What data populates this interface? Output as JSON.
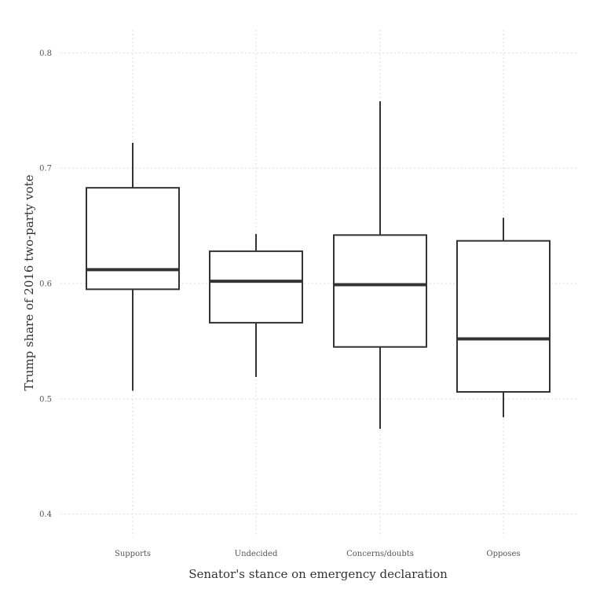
{
  "chart_data": {
    "type": "boxplot",
    "title": "",
    "xlabel": "Senator's stance on emergency declaration",
    "ylabel": "Trump share of 2016 two-party vote",
    "ylim": [
      0.38,
      0.82
    ],
    "yticks": [
      0.4,
      0.5,
      0.6,
      0.7,
      0.8
    ],
    "ytick_labels": [
      "0.4",
      "0.5",
      "0.6",
      "0.7",
      "0.8"
    ],
    "grid": true,
    "categories": [
      "Supports",
      "Undecided",
      "Concerns/doubts",
      "Opposes"
    ],
    "boxes": [
      {
        "category": "Supports",
        "whisker_low": 0.507,
        "q1": 0.595,
        "median": 0.612,
        "q3": 0.683,
        "whisker_high": 0.722
      },
      {
        "category": "Undecided",
        "whisker_low": 0.519,
        "q1": 0.566,
        "median": 0.602,
        "q3": 0.628,
        "whisker_high": 0.643
      },
      {
        "category": "Concerns/doubts",
        "whisker_low": 0.474,
        "q1": 0.545,
        "median": 0.599,
        "q3": 0.642,
        "whisker_high": 0.758
      },
      {
        "category": "Opposes",
        "whisker_low": 0.484,
        "q1": 0.506,
        "median": 0.552,
        "q3": 0.637,
        "whisker_high": 0.657
      }
    ]
  }
}
